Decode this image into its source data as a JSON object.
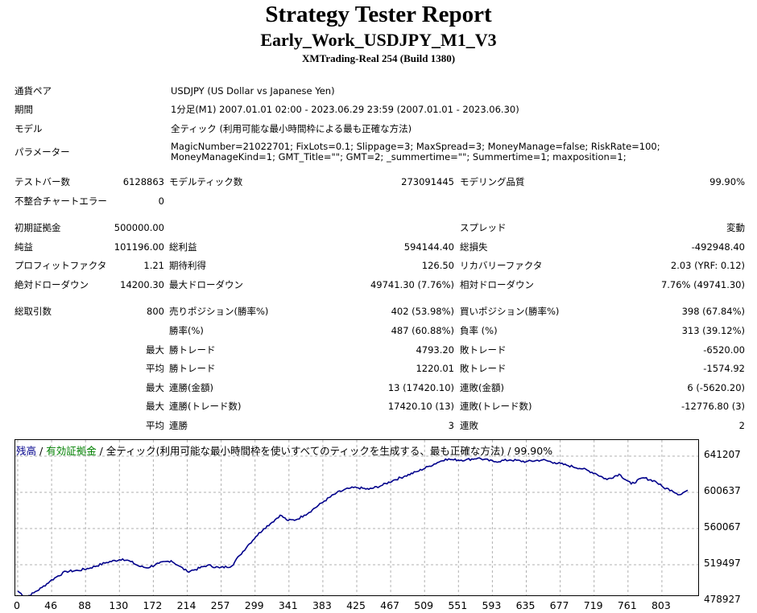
{
  "header": {
    "title": "Strategy Tester Report",
    "subtitle": "Early_Work_USDJPY_M1_V3",
    "build": "XMTrading-Real 254 (Build 1380)"
  },
  "info": {
    "pair_label": "通貨ペア",
    "pair_value": "USDJPY (US Dollar vs Japanese Yen)",
    "period_label": "期間",
    "period_value": "1分足(M1) 2007.01.01 02:00 - 2023.06.29 23:59 (2007.01.01 - 2023.06.30)",
    "model_label": "モデル",
    "model_value": "全ティック (利用可能な最小時間枠による最も正確な方法)",
    "params_label": "パラメーター",
    "params_value": "MagicNumber=21022701; FixLots=0.1; Slippage=3; MaxSpread=3; MoneyManage=false; RiskRate=100; MoneyManageKind=1; GMT_Title=\"\"; GMT=2; _summertime=\"\"; Summertime=1; maxposition=1;"
  },
  "stats": {
    "bars_label": "テストバー数",
    "bars_value": "6128863",
    "ticks_label": "モデルティック数",
    "ticks_value": "273091445",
    "quality_label": "モデリング品質",
    "quality_value": "99.90%",
    "mismatch_label": "不整合チャートエラー",
    "mismatch_value": "0",
    "deposit_label": "初期証拠金",
    "deposit_value": "500000.00",
    "spread_label": "スプレッド",
    "spread_value": "変動",
    "net_label": "純益",
    "net_value": "101196.00",
    "gross_profit_label": "総利益",
    "gross_profit_value": "594144.40",
    "gross_loss_label": "総損失",
    "gross_loss_value": "-492948.40",
    "pf_label": "プロフィットファクタ",
    "pf_value": "1.21",
    "expected_label": "期待利得",
    "expected_value": "126.50",
    "recovery_label": "リカバリーファクタ",
    "recovery_value": "2.03 (YRF: 0.12)",
    "abs_dd_label": "絶対ドローダウン",
    "abs_dd_value": "14200.30",
    "max_dd_label": "最大ドローダウン",
    "max_dd_value": "49741.30 (7.76%)",
    "rel_dd_label": "相対ドローダウン",
    "rel_dd_value": "7.76% (49741.30)",
    "trades_label": "総取引数",
    "trades_value": "800",
    "short_label": "売りポジション(勝率%)",
    "short_value": "402 (53.98%)",
    "long_label": "買いポジション(勝率%)",
    "long_value": "398 (67.84%)",
    "winrate_label": "勝率(%)",
    "winrate_value": "487 (60.88%)",
    "lossrate_label": "負率 (%)",
    "lossrate_value": "313 (39.12%)",
    "max_label": "最大",
    "avg_label": "平均",
    "win_trade_label": "勝トレード",
    "loss_trade_label": "敗トレード",
    "max_win_value": "4793.20",
    "max_loss_value": "-6520.00",
    "avg_win_value": "1220.01",
    "avg_loss_value": "-1574.92",
    "cons_win_amt_label": "連勝(金額)",
    "cons_win_amt_value": "13 (17420.10)",
    "cons_loss_amt_label": "連敗(金額)",
    "cons_loss_amt_value": "6 (-5620.20)",
    "cons_win_trd_label": "連勝(トレード数)",
    "cons_win_trd_value": "17420.10 (13)",
    "cons_loss_trd_label": "連敗(トレード数)",
    "cons_loss_trd_value": "-12776.80 (3)",
    "avg_cons_win_label": "連勝",
    "avg_cons_win_value": "3",
    "avg_cons_loss_label": "連敗",
    "avg_cons_loss_value": "2"
  },
  "chart_legend": {
    "balance": "残高",
    "sep1": " / ",
    "equity": "有効証拠金",
    "sep2": " / ",
    "rest": "全ティック(利用可能な最小時間枠を使いすべてのティックを生成する、最も正確な方法) / 99.90%",
    "balance_color": "#00008b",
    "equity_color": "#008000"
  },
  "chart_data": {
    "type": "line",
    "x_ticks": [
      "0",
      "46",
      "88",
      "130",
      "172",
      "214",
      "257",
      "299",
      "341",
      "383",
      "425",
      "467",
      "509",
      "551",
      "593",
      "635",
      "677",
      "719",
      "761",
      "803"
    ],
    "y_ticks": [
      "641207",
      "600637",
      "560067",
      "519497",
      "478927"
    ],
    "xlim": [
      0,
      830
    ],
    "ylim": [
      478927,
      651000
    ],
    "series": [
      {
        "color": "#00008b",
        "x": [
          0,
          10,
          20,
          30,
          40,
          50,
          60,
          75,
          90,
          110,
          130,
          140,
          150,
          160,
          175,
          190,
          200,
          210,
          220,
          235,
          250,
          265,
          275,
          285,
          295,
          305,
          315,
          325,
          335,
          345,
          355,
          365,
          380,
          395,
          410,
          420,
          435,
          450,
          465,
          480,
          495,
          510,
          520,
          530,
          540,
          555,
          570,
          590,
          610,
          630,
          650,
          665,
          680,
          700,
          715,
          730,
          745,
          760,
          775,
          790,
          800,
          810,
          820,
          830
        ],
        "y": [
          490000,
          483000,
          488000,
          494000,
          501000,
          507000,
          512000,
          513000,
          516000,
          522000,
          526000,
          523000,
          518000,
          516000,
          521000,
          524000,
          518000,
          512000,
          514000,
          519000,
          516000,
          518000,
          530000,
          541000,
          551000,
          560000,
          567000,
          575000,
          569000,
          570000,
          575000,
          581000,
          591000,
          600000,
          605000,
          606000,
          604000,
          608000,
          614000,
          619000,
          624000,
          630000,
          634000,
          638000,
          637000,
          637000,
          639000,
          635000,
          637000,
          635000,
          637000,
          634000,
          631000,
          627000,
          622000,
          615000,
          621000,
          610000,
          617000,
          613000,
          606000,
          603000,
          598000,
          603000
        ]
      }
    ]
  }
}
